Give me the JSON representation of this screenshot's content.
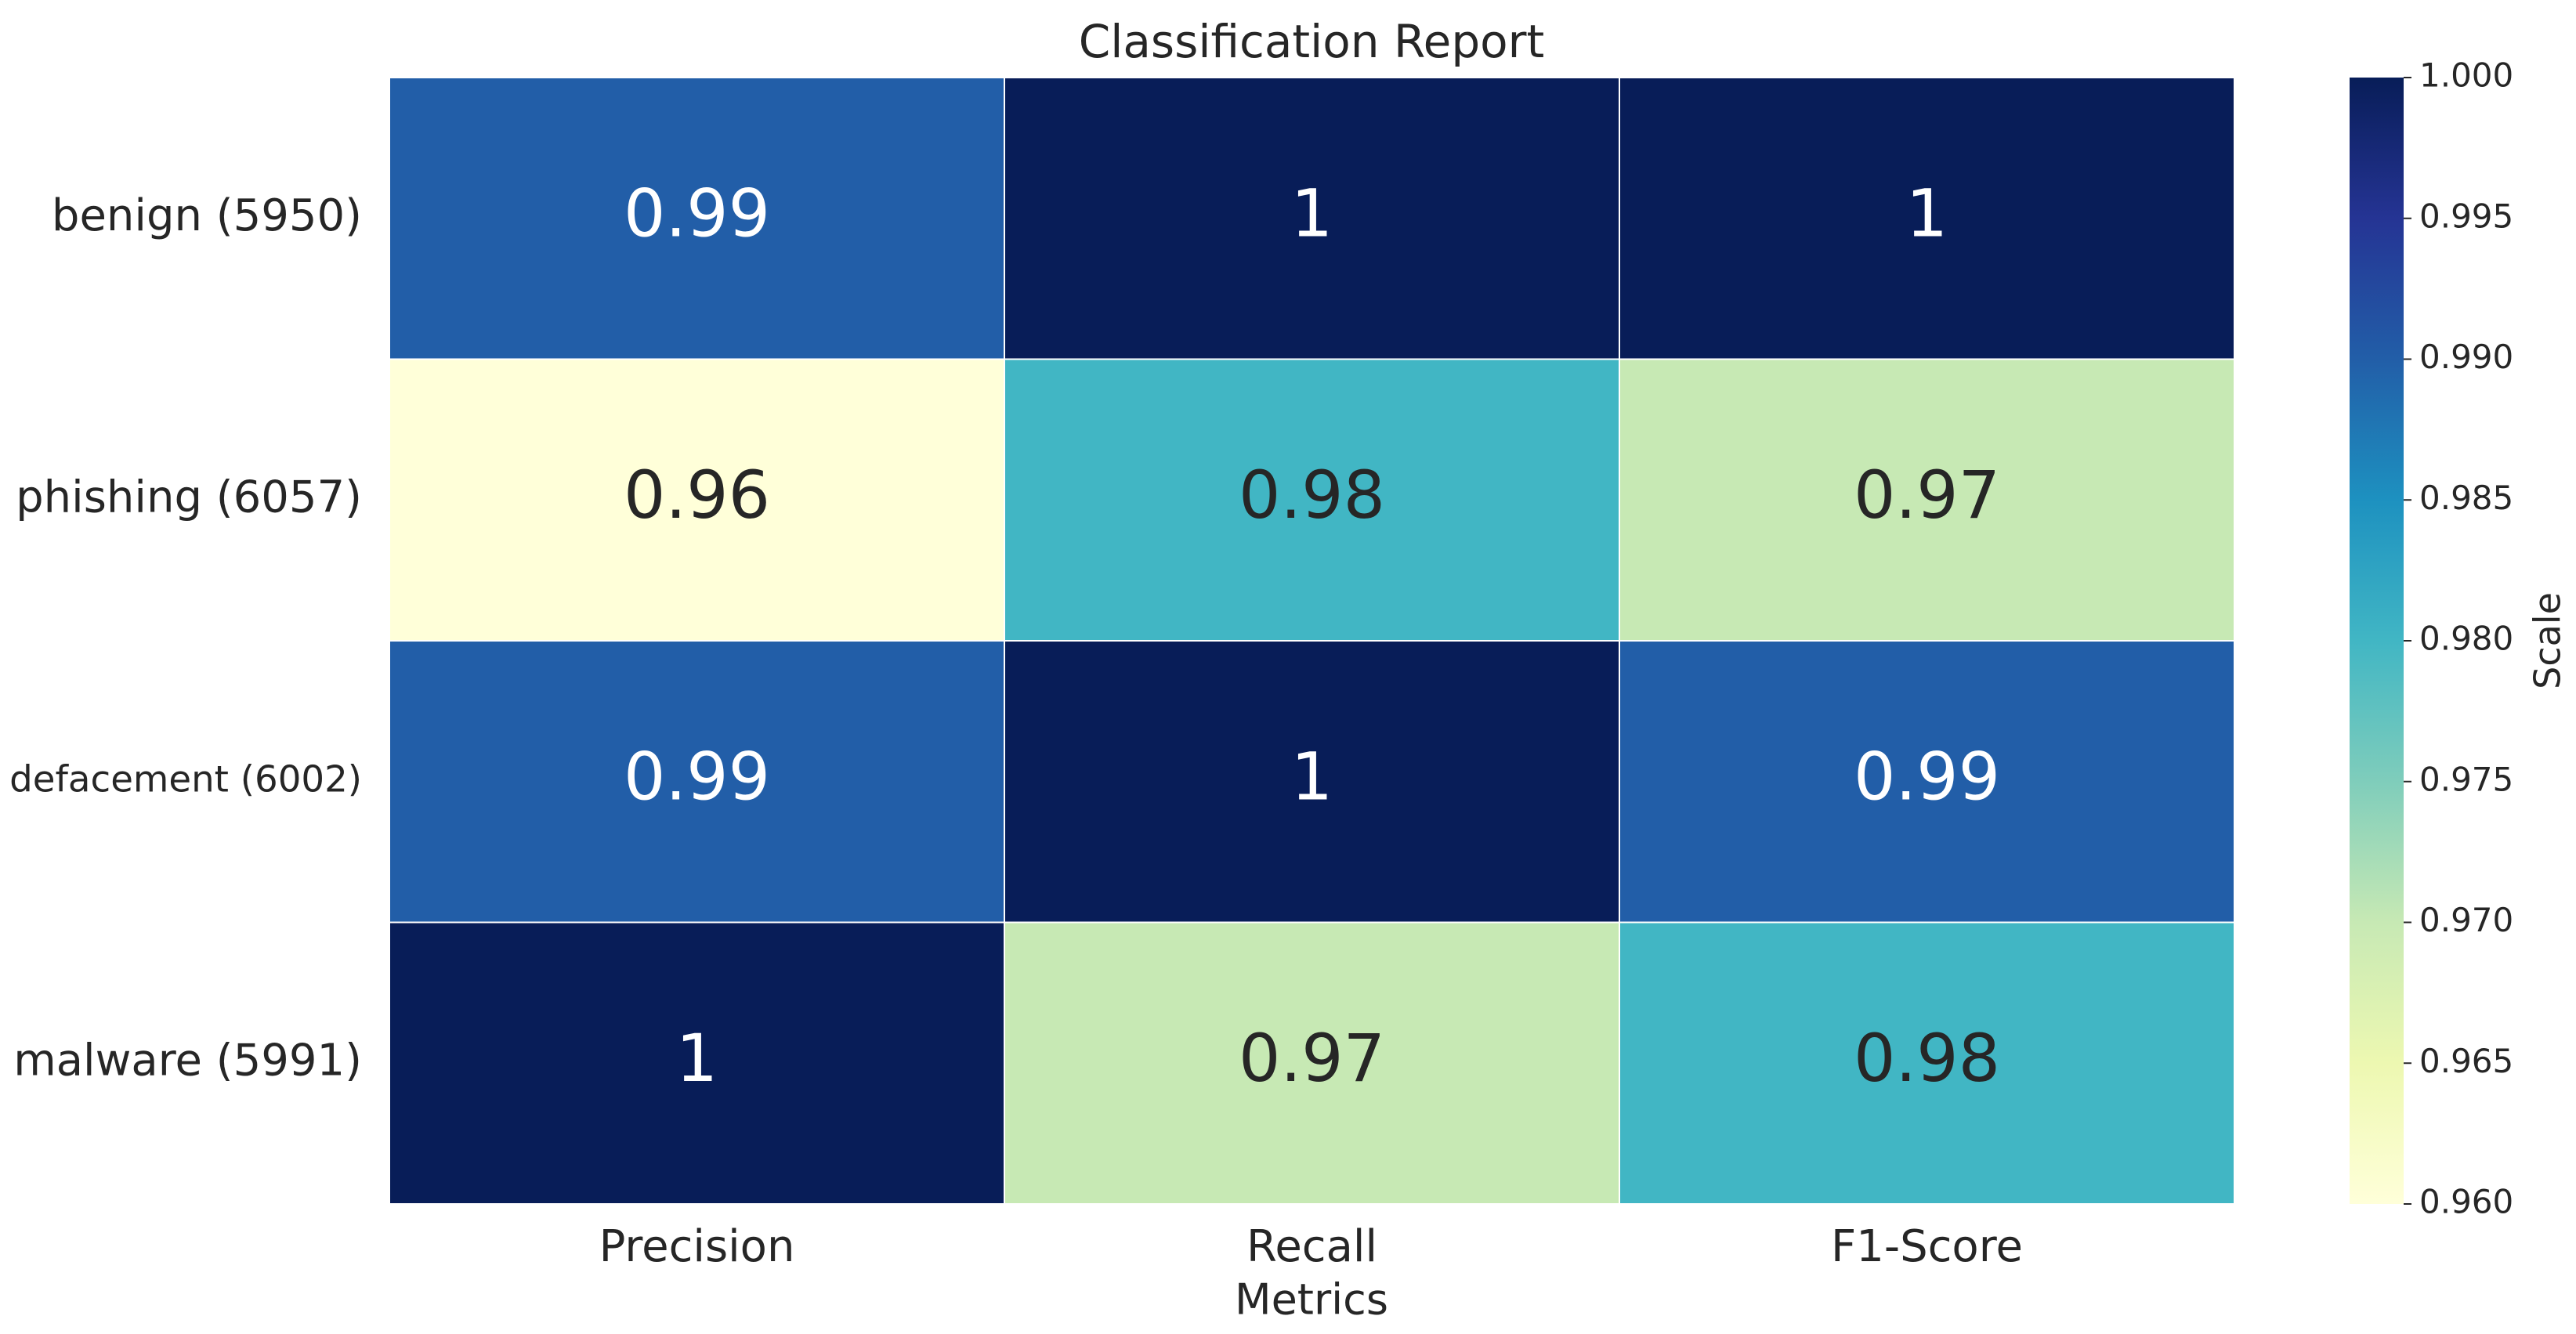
{
  "chart_data": {
    "type": "heatmap",
    "title": "Classification Report",
    "xlabel": "Metrics",
    "x_categories": [
      "Precision",
      "Recall",
      "F1-Score"
    ],
    "y_categories": [
      "benign (5950)",
      "phishing (6057)",
      "defacement (6002)",
      "malware (5991)"
    ],
    "values": [
      [
        0.99,
        1,
        1
      ],
      [
        0.96,
        0.98,
        0.97
      ],
      [
        0.99,
        1,
        0.99
      ],
      [
        1,
        0.97,
        0.98
      ]
    ],
    "colorbar_label": "Scale",
    "clim": [
      0.96,
      1.0
    ],
    "cticks": [
      {
        "value": 0.96,
        "label": "0.960"
      },
      {
        "value": 0.965,
        "label": "0.965"
      },
      {
        "value": 0.97,
        "label": "0.970"
      },
      {
        "value": 0.975,
        "label": "0.975"
      },
      {
        "value": 0.98,
        "label": "0.980"
      },
      {
        "value": 0.985,
        "label": "0.985"
      },
      {
        "value": 0.99,
        "label": "0.990"
      },
      {
        "value": 0.995,
        "label": "0.995"
      },
      {
        "value": 1.0,
        "label": "1.000"
      }
    ],
    "colormap": [
      "#ffffd9",
      "#edf8b1",
      "#c7e9b4",
      "#7fcdbb",
      "#41b6c4",
      "#1d91c0",
      "#225ea8",
      "#253494",
      "#081d58"
    ]
  }
}
